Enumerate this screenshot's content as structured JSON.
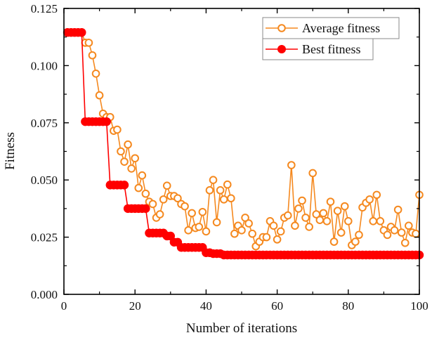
{
  "chart_data": {
    "type": "line",
    "title": "",
    "xlabel": "Number of iterations",
    "ylabel": "Fitness",
    "xlim": [
      0,
      100
    ],
    "ylim": [
      0,
      0.125
    ],
    "xticks": [
      0,
      20,
      40,
      60,
      80,
      100
    ],
    "xtick_labels": [
      "0",
      "20",
      "40",
      "60",
      "80",
      "100"
    ],
    "xminor_ticks": [
      10,
      30,
      50,
      70,
      90
    ],
    "yticks": [
      0,
      0.025,
      0.05,
      0.075,
      0.1,
      0.125
    ],
    "ytick_labels": [
      "0.000",
      "0.025",
      "0.050",
      "0.075",
      "0.100",
      "0.125"
    ],
    "yminor_ticks": [
      0.0125,
      0.0375,
      0.0625,
      0.0875,
      0.1125
    ],
    "grid": false,
    "legend_position": "top-right",
    "x": [
      1,
      2,
      3,
      4,
      5,
      6,
      7,
      8,
      9,
      10,
      11,
      12,
      13,
      14,
      15,
      16,
      17,
      18,
      19,
      20,
      21,
      22,
      23,
      24,
      25,
      26,
      27,
      28,
      29,
      30,
      31,
      32,
      33,
      34,
      35,
      36,
      37,
      38,
      39,
      40,
      41,
      42,
      43,
      44,
      45,
      46,
      47,
      48,
      49,
      50,
      51,
      52,
      53,
      54,
      55,
      56,
      57,
      58,
      59,
      60,
      61,
      62,
      63,
      64,
      65,
      66,
      67,
      68,
      69,
      70,
      71,
      72,
      73,
      74,
      75,
      76,
      77,
      78,
      79,
      80,
      81,
      82,
      83,
      84,
      85,
      86,
      87,
      88,
      89,
      90,
      91,
      92,
      93,
      94,
      95,
      96,
      97,
      98,
      99,
      100
    ],
    "series": [
      {
        "name": "Average fitness",
        "color": "#f5891f",
        "marker": "open-circle",
        "values": [
          0.1145,
          0.1145,
          0.1145,
          0.1145,
          0.1145,
          0.11,
          0.11,
          0.1045,
          0.0965,
          0.087,
          0.079,
          0.0775,
          0.0775,
          0.0715,
          0.072,
          0.0625,
          0.058,
          0.0655,
          0.055,
          0.0595,
          0.0465,
          0.052,
          0.044,
          0.0405,
          0.0395,
          0.0335,
          0.035,
          0.0415,
          0.0475,
          0.043,
          0.043,
          0.042,
          0.0395,
          0.0385,
          0.028,
          0.0355,
          0.029,
          0.0295,
          0.036,
          0.0275,
          0.0455,
          0.05,
          0.0315,
          0.0455,
          0.0415,
          0.048,
          0.042,
          0.0265,
          0.03,
          0.028,
          0.0335,
          0.031,
          0.0265,
          0.021,
          0.023,
          0.025,
          0.025,
          0.032,
          0.03,
          0.024,
          0.0275,
          0.0335,
          0.0345,
          0.0565,
          0.03,
          0.0375,
          0.041,
          0.0335,
          0.0295,
          0.053,
          0.035,
          0.0325,
          0.0355,
          0.032,
          0.0405,
          0.023,
          0.0365,
          0.027,
          0.0385,
          0.032,
          0.0215,
          0.023,
          0.026,
          0.038,
          0.04,
          0.0415,
          0.032,
          0.0435,
          0.032,
          0.028,
          0.026,
          0.0295,
          0.028,
          0.037,
          0.027,
          0.0225,
          0.03,
          0.027,
          0.0265,
          0.0435
        ]
      },
      {
        "name": "Best fitness",
        "color": "#ff0000",
        "marker": "filled-circle",
        "values": [
          0.1145,
          0.1145,
          0.1145,
          0.1145,
          0.1145,
          0.0755,
          0.0755,
          0.0755,
          0.0755,
          0.0755,
          0.0755,
          0.0755,
          0.0478,
          0.0478,
          0.0478,
          0.0478,
          0.0478,
          0.0375,
          0.0375,
          0.0375,
          0.0375,
          0.0375,
          0.0375,
          0.0268,
          0.0268,
          0.0268,
          0.0268,
          0.0268,
          0.0255,
          0.0255,
          0.0228,
          0.0228,
          0.0205,
          0.0205,
          0.0205,
          0.0205,
          0.0205,
          0.0205,
          0.0205,
          0.0182,
          0.0182,
          0.0178,
          0.0178,
          0.0178,
          0.0172,
          0.0172,
          0.0172,
          0.0172,
          0.0172,
          0.0172,
          0.0172,
          0.0172,
          0.0172,
          0.0172,
          0.0172,
          0.0172,
          0.0172,
          0.0172,
          0.0172,
          0.0172,
          0.0172,
          0.0172,
          0.0172,
          0.0172,
          0.0172,
          0.0172,
          0.0172,
          0.0172,
          0.0172,
          0.0172,
          0.0172,
          0.0172,
          0.0172,
          0.0172,
          0.0172,
          0.0172,
          0.0172,
          0.0172,
          0.0172,
          0.0172,
          0.0172,
          0.0172,
          0.0172,
          0.0172,
          0.0172,
          0.0172,
          0.0172,
          0.0172,
          0.0172,
          0.0172,
          0.0172,
          0.0172,
          0.0172,
          0.0172,
          0.0172,
          0.0172,
          0.0172,
          0.0172,
          0.0172,
          0.0172
        ]
      }
    ],
    "legend": [
      {
        "label": "Average fitness",
        "color": "#f5891f",
        "marker": "open-circle"
      },
      {
        "label": "Best fitness",
        "color": "#ff0000",
        "marker": "filled-circle"
      }
    ]
  }
}
